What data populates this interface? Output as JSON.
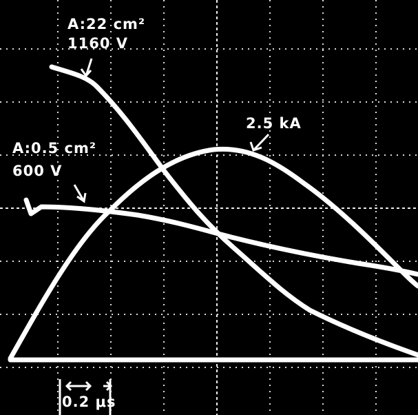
{
  "annotations": {
    "large_area": "A:22 cm²",
    "large_voltage": "1160 V",
    "current": "2.5 kA",
    "small_area": "A:0.5 cm²",
    "small_voltage": "600 V",
    "time_scale": "0.2 μs"
  }
}
